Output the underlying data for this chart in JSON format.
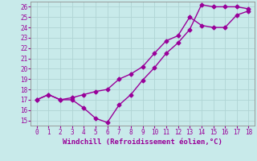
{
  "title": "",
  "xlabel": "Windchill (Refroidissement éolien,°C)",
  "ylabel": "",
  "bg_color": "#c8eaea",
  "grid_color": "#b0d4d4",
  "line_color": "#990099",
  "x_line1": [
    0,
    1,
    2,
    3,
    4,
    5,
    6,
    7,
    8,
    9,
    10,
    11,
    12,
    13,
    14,
    15,
    16,
    17,
    18
  ],
  "y_line1": [
    17.0,
    17.5,
    17.0,
    17.0,
    16.2,
    15.2,
    14.8,
    16.5,
    17.5,
    18.9,
    20.1,
    21.5,
    22.5,
    23.8,
    26.2,
    26.0,
    26.0,
    26.0,
    25.8
  ],
  "x_line2": [
    0,
    1,
    2,
    3,
    4,
    5,
    6,
    7,
    8,
    9,
    10,
    11,
    12,
    13,
    14,
    15,
    16,
    17,
    18
  ],
  "y_line2": [
    17.0,
    17.5,
    17.0,
    17.2,
    17.5,
    17.8,
    18.0,
    19.0,
    19.5,
    20.2,
    21.5,
    22.7,
    23.2,
    25.0,
    24.2,
    24.0,
    24.0,
    25.2,
    25.6
  ],
  "xlim": [
    -0.5,
    18.5
  ],
  "ylim": [
    14.5,
    26.5
  ],
  "xticks": [
    0,
    1,
    2,
    3,
    4,
    5,
    6,
    7,
    8,
    9,
    10,
    11,
    12,
    13,
    14,
    15,
    16,
    17,
    18
  ],
  "yticks": [
    15,
    16,
    17,
    18,
    19,
    20,
    21,
    22,
    23,
    24,
    25,
    26
  ],
  "marker": "D",
  "markersize": 2.5,
  "linewidth": 1.0,
  "xlabel_fontsize": 6.5,
  "tick_fontsize": 5.5
}
